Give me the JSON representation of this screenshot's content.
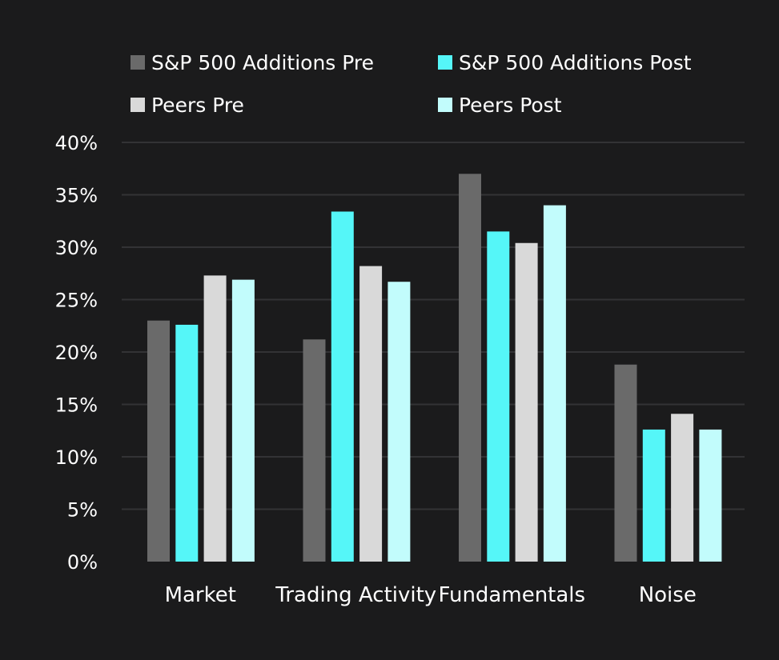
{
  "chart_data": {
    "type": "bar",
    "title": "",
    "xlabel": "",
    "ylabel": "",
    "categories": [
      "Market",
      "Trading Activity",
      "Fundamentals",
      "Noise"
    ],
    "series": [
      {
        "name": "S&P 500 Additions Pre",
        "color": "#6a6a6a",
        "values": [
          23.0,
          21.2,
          37.0,
          18.8
        ]
      },
      {
        "name": "S&P 500 Additions Post",
        "color": "#55f6f8",
        "values": [
          22.6,
          33.4,
          31.5,
          12.6
        ]
      },
      {
        "name": "Peers Pre",
        "color": "#d9d9d9",
        "values": [
          27.3,
          28.2,
          30.4,
          14.1
        ]
      },
      {
        "name": "Peers Post",
        "color": "#c2fcfc",
        "values": [
          26.9,
          26.7,
          34.0,
          12.6
        ]
      }
    ],
    "ylim": [
      0,
      40
    ],
    "yticks": [
      0,
      5,
      10,
      15,
      20,
      25,
      30,
      35,
      40
    ],
    "ytick_labels": [
      "0%",
      "5%",
      "10%",
      "15%",
      "20%",
      "25%",
      "30%",
      "35%",
      "40%"
    ],
    "grid": true,
    "legend_position": "top"
  }
}
